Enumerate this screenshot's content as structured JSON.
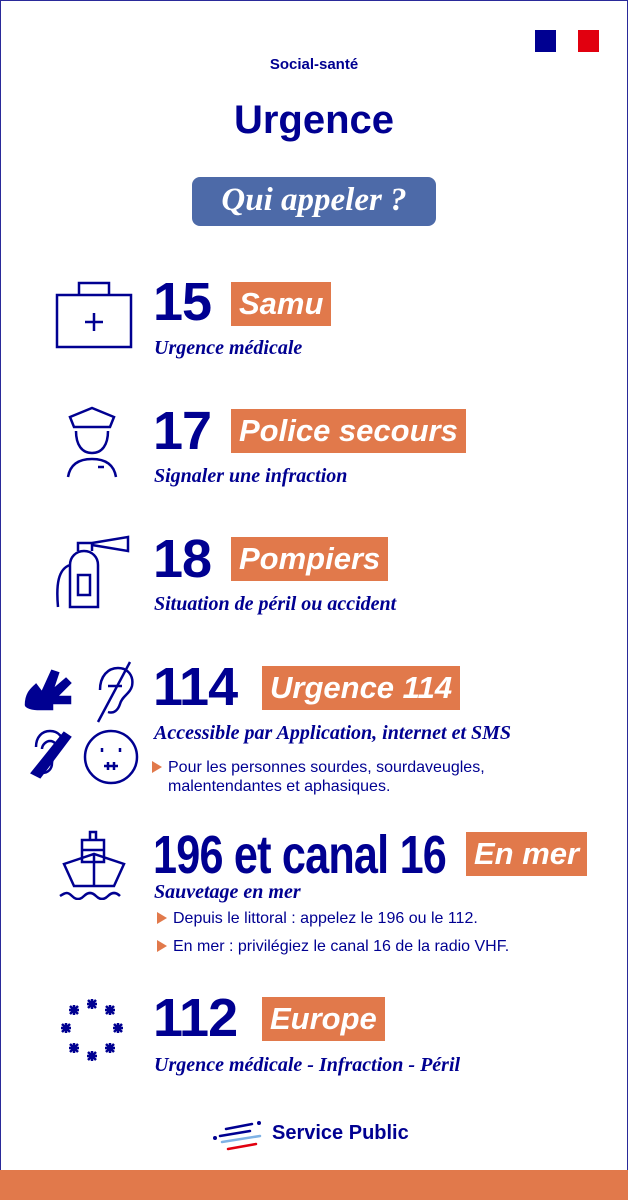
{
  "header": {
    "category": "Social-santé",
    "title": "Urgence",
    "question": "Qui appeler ?"
  },
  "colors": {
    "navy": "#000091",
    "orange": "#e1794b",
    "pill": "#4d6aa8"
  },
  "entries": [
    {
      "number": "15",
      "tag": "Samu",
      "subtitle": "Urgence médicale",
      "icon": "first-aid-kit-icon"
    },
    {
      "number": "17",
      "tag": "Police secours",
      "subtitle": "Signaler une infraction",
      "icon": "police-officer-icon"
    },
    {
      "number": "18",
      "tag": "Pompiers",
      "subtitle": "Situation de péril ou accident",
      "icon": "fire-extinguisher-icon"
    },
    {
      "number": "114",
      "tag": "Urgence 114",
      "subtitle": "Accessible par Application, internet et SMS",
      "bullets": [
        "Pour les personnes sourdes, sourdaveugles, malentendantes et aphasiques."
      ],
      "icon": "accessibility-icons"
    },
    {
      "number": "196 et canal 16",
      "tag": "En mer",
      "subtitle": "Sauvetage en mer",
      "bullets": [
        "Depuis le littoral : appelez le 196 ou le 112.",
        "En mer : privilégiez le canal 16 de la radio VHF."
      ],
      "icon": "ship-icon"
    },
    {
      "number": "112",
      "tag": "Europe",
      "subtitle": "Urgence médicale - Infraction - Péril",
      "icon": "eu-stars-icon"
    }
  ],
  "footer": {
    "logo": "Service Public"
  }
}
